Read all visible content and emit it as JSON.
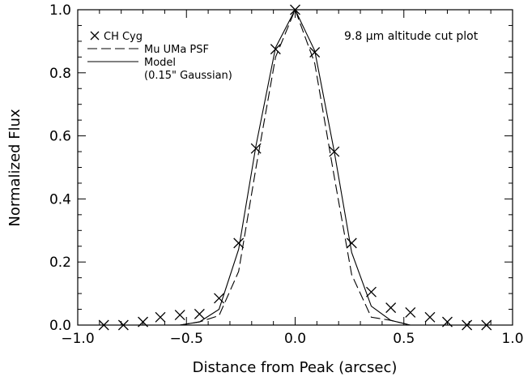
{
  "chart_data": {
    "type": "line",
    "title": "",
    "annotation": "9.8 μm altitude cut plot",
    "xlabel": "Distance from Peak (arcsec)",
    "ylabel": "Normalized Flux",
    "xlim": [
      -1.0,
      1.0
    ],
    "ylim": [
      0.0,
      1.0
    ],
    "xticks": [
      -1.0,
      -0.5,
      0.0,
      0.5,
      1.0
    ],
    "yticks": [
      0.0,
      0.2,
      0.4,
      0.6,
      0.8,
      1.0
    ],
    "xtick_labels": [
      "−1.0",
      "−0.5",
      "0.0",
      "0.5",
      "1.0"
    ],
    "ytick_labels": [
      "0.0",
      "0.2",
      "0.4",
      "0.6",
      "0.8",
      "1.0"
    ],
    "grid": false,
    "legend_position": "top-left",
    "legend": [
      {
        "label": "CH Cyg",
        "style": "x-marker"
      },
      {
        "label": "Mu UMa PSF",
        "style": "dashed"
      },
      {
        "label": "Model",
        "label2": "(0.15\" Gaussian)",
        "style": "solid"
      }
    ],
    "series": [
      {
        "name": "CH Cyg",
        "style": "markers",
        "x": [
          -0.88,
          -0.79,
          -0.7,
          -0.62,
          -0.53,
          -0.44,
          -0.35,
          -0.26,
          -0.18,
          -0.09,
          0.0,
          0.09,
          0.18,
          0.26,
          0.35,
          0.44,
          0.53,
          0.62,
          0.7,
          0.79,
          0.88
        ],
        "y": [
          0.0,
          0.0,
          0.01,
          0.025,
          0.032,
          0.035,
          0.085,
          0.26,
          0.56,
          0.875,
          1.0,
          0.865,
          0.55,
          0.26,
          0.105,
          0.055,
          0.04,
          0.025,
          0.01,
          0.0,
          0.0
        ]
      },
      {
        "name": "Mu UMa PSF",
        "style": "dashed",
        "x": [
          -0.53,
          -0.44,
          -0.35,
          -0.26,
          -0.18,
          -0.09,
          0.0,
          0.09,
          0.18,
          0.26,
          0.35,
          0.44,
          0.53
        ],
        "y": [
          0.0,
          0.01,
          0.03,
          0.17,
          0.5,
          0.85,
          1.0,
          0.83,
          0.47,
          0.16,
          0.025,
          0.015,
          0.0
        ]
      },
      {
        "name": "Model",
        "style": "solid",
        "x": [
          -0.53,
          -0.44,
          -0.35,
          -0.26,
          -0.18,
          -0.09,
          0.0,
          0.09,
          0.18,
          0.26,
          0.35,
          0.44,
          0.53
        ],
        "y": [
          0.0,
          0.01,
          0.05,
          0.24,
          0.57,
          0.88,
          1.0,
          0.87,
          0.55,
          0.23,
          0.06,
          0.015,
          0.0
        ]
      }
    ]
  }
}
